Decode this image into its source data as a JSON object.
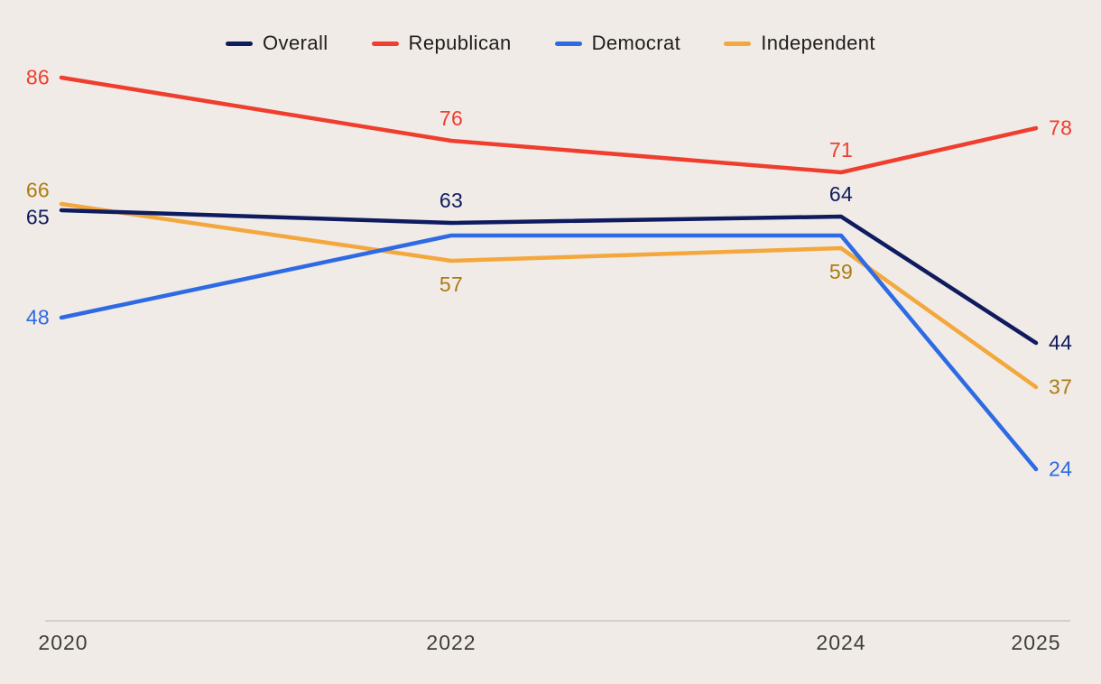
{
  "chart_data": {
    "type": "line",
    "title": "",
    "x": [
      2020,
      2022,
      2024,
      2025
    ],
    "x_labels": [
      "2020",
      "2022",
      "2024",
      "2025"
    ],
    "ylim": [
      0,
      100
    ],
    "grid": false,
    "background": "#f0ebe6",
    "axis_color": "#ccc6c0",
    "tick_label_color": "#3d3d3d",
    "legend_text_color": "#1e1e1e",
    "legend_position": "top-center",
    "series": [
      {
        "name": "Overall",
        "color": "#0f1b5f",
        "label_color": "#0f1b5f",
        "values": [
          65,
          63,
          64,
          44
        ],
        "point_labels": [
          "65",
          "63",
          "64",
          "44"
        ],
        "label_pos": [
          "left",
          "above",
          "above",
          "right"
        ],
        "label_dy": [
          8,
          0,
          0,
          0
        ]
      },
      {
        "name": "Republican",
        "color": "#ef3d2e",
        "label_color": "#ef3d2e",
        "values": [
          86,
          76,
          71,
          78
        ],
        "point_labels": [
          "86",
          "76",
          "71",
          "78"
        ],
        "label_pos": [
          "left",
          "above",
          "above",
          "right"
        ],
        "label_dy": [
          0,
          0,
          0,
          0
        ]
      },
      {
        "name": "Democrat",
        "color": "#2e6ae4",
        "label_color": "#2e6ae4",
        "values": [
          48,
          61,
          61,
          24
        ],
        "point_labels": [
          "48",
          "",
          "",
          "24"
        ],
        "label_pos": [
          "left",
          "",
          "",
          "right"
        ],
        "label_dy": [
          0,
          0,
          0,
          0
        ]
      },
      {
        "name": "Independent",
        "color": "#f4a73c",
        "label_color": "#ad7b12",
        "values": [
          66,
          57,
          59,
          37
        ],
        "point_labels": [
          "66",
          "57",
          "59",
          "37"
        ],
        "label_pos": [
          "left",
          "below",
          "below",
          "right"
        ],
        "label_dy": [
          -15,
          0,
          0,
          0
        ]
      }
    ],
    "draw_order": [
      "Independent",
      "Democrat",
      "Overall",
      "Republican"
    ]
  }
}
